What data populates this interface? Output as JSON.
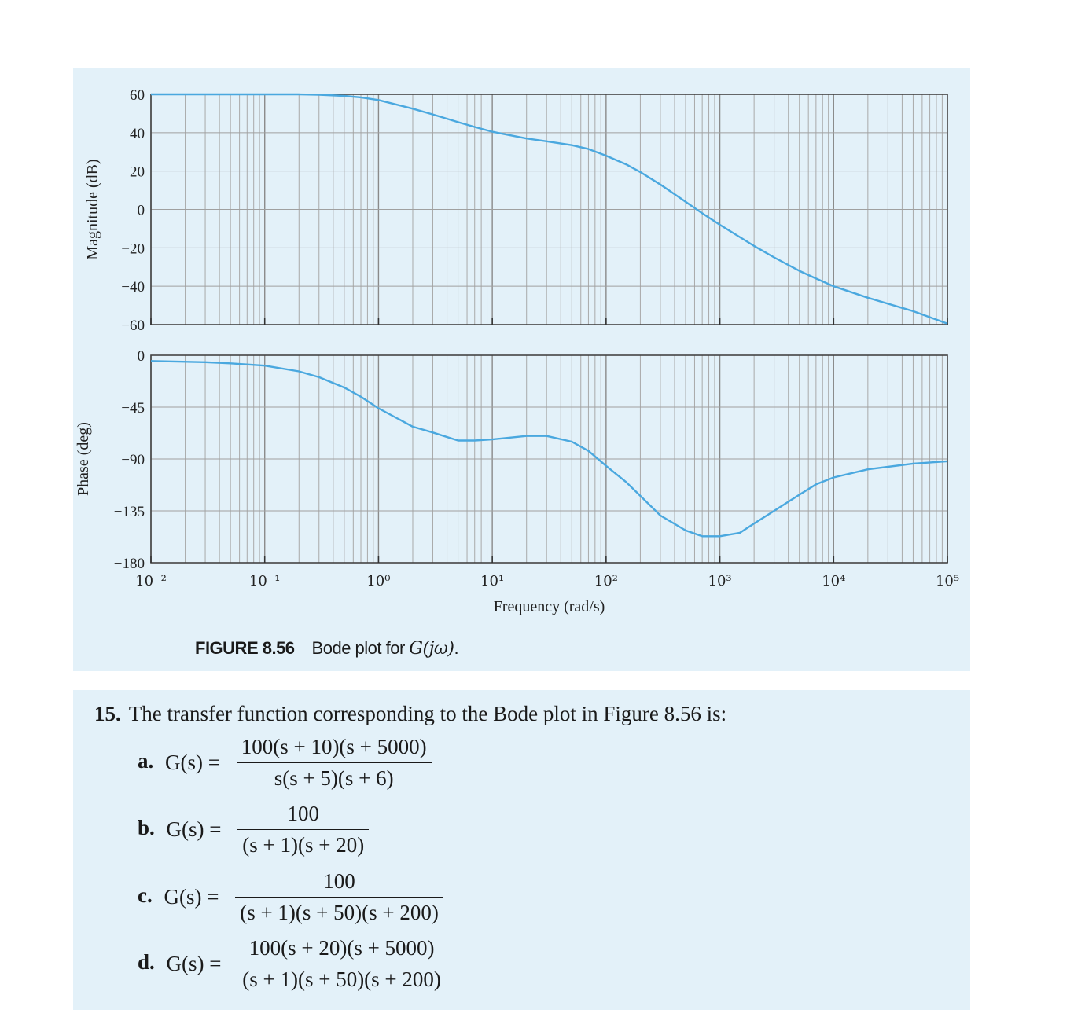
{
  "caption": {
    "label": "FIGURE 8.56",
    "text_prefix": "Bode plot for ",
    "text_math": "G(jω)",
    "text_suffix": "."
  },
  "chart_data": [
    {
      "type": "line",
      "xlabel": "",
      "ylabel": "Magnitude (dB)",
      "x_scale": "log",
      "xlim": [
        0.01,
        100000
      ],
      "ylim": [
        -60,
        60
      ],
      "yticks": [
        "60",
        "40",
        "20",
        "0",
        "−20",
        "−40",
        "−60"
      ],
      "grid": true,
      "color": "#4aa8df",
      "series": [
        {
          "x": [
            0.01,
            0.1,
            0.2,
            0.3,
            0.5,
            0.7,
            1,
            2,
            3,
            5,
            7,
            10,
            20,
            30,
            50,
            70,
            100,
            150,
            200,
            300,
            500,
            700,
            1000,
            2000,
            3000,
            5000,
            7000,
            10000,
            20000,
            50000,
            100000
          ],
          "y": [
            60,
            60,
            60,
            59.8,
            59.2,
            58.4,
            57,
            52.5,
            49.5,
            45.5,
            43,
            40.5,
            37,
            35.5,
            33.5,
            31.5,
            28,
            23.5,
            19.5,
            13,
            4,
            -2,
            -8,
            -19,
            -25,
            -32,
            -36,
            -40,
            -46,
            -53,
            -59.5
          ]
        }
      ]
    },
    {
      "type": "line",
      "xlabel": "Frequency (rad/s)",
      "ylabel": "Phase (deg)",
      "x_scale": "log",
      "xlim": [
        0.01,
        100000
      ],
      "ylim": [
        -180,
        0
      ],
      "yticks": [
        "0",
        "−45",
        "−90",
        "−135",
        "−180"
      ],
      "xticks": [
        "10⁻²",
        "10⁻¹",
        "10⁰",
        "10¹",
        "10²",
        "10³",
        "10⁴",
        "10⁵"
      ],
      "grid": true,
      "color": "#4aa8df",
      "series": [
        {
          "x": [
            0.01,
            0.03,
            0.05,
            0.1,
            0.2,
            0.3,
            0.5,
            0.7,
            1,
            2,
            3,
            5,
            7,
            10,
            20,
            30,
            50,
            70,
            100,
            150,
            200,
            300,
            500,
            700,
            1000,
            1500,
            2000,
            3000,
            5000,
            7000,
            10000,
            20000,
            50000,
            100000
          ],
          "y": [
            -5,
            -6,
            -7,
            -9,
            -14,
            -19,
            -28,
            -36,
            -46,
            -62,
            -67,
            -74,
            -74,
            -73,
            -70,
            -70,
            -75,
            -83,
            -96,
            -110,
            -122,
            -139,
            -152,
            -157,
            -157,
            -154,
            -146,
            -135,
            -121,
            -112,
            -106,
            -99,
            -94,
            -92
          ]
        }
      ]
    }
  ],
  "question": {
    "number": "15.",
    "text": "The transfer function corresponding to the Bode plot in Figure 8.56 is:",
    "options": [
      {
        "label": "a.",
        "numerator": "100(s + 10)(s + 5000)",
        "denominator": "s(s + 5)(s + 6)"
      },
      {
        "label": "b.",
        "numerator": "100",
        "denominator": "(s + 1)(s + 20)"
      },
      {
        "label": "c.",
        "numerator": "100",
        "denominator": "(s + 1)(s + 50)(s + 200)"
      },
      {
        "label": "d.",
        "numerator": "100(s + 20)(s + 5000)",
        "denominator": "(s + 1)(s + 50)(s + 200)"
      }
    ],
    "lhs": "G(s) ="
  }
}
